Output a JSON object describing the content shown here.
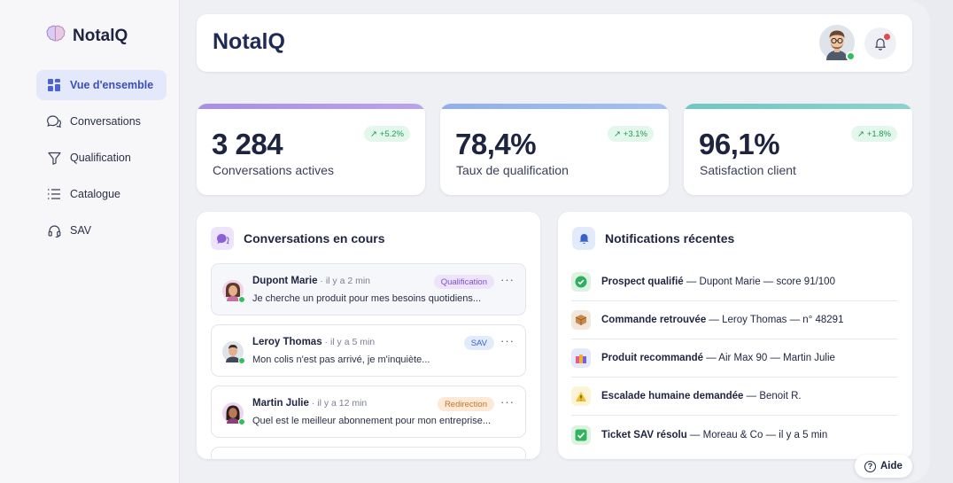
{
  "app": {
    "name": "NotalQ"
  },
  "sidebar": {
    "items": [
      {
        "label": "Vue d'ensemble",
        "icon": "grid-icon",
        "active": true
      },
      {
        "label": "Conversations",
        "icon": "chat-icon",
        "active": false
      },
      {
        "label": "Qualification",
        "icon": "filter-icon",
        "active": false
      },
      {
        "label": "Catalogue",
        "icon": "list-icon",
        "active": false
      },
      {
        "label": "SAV",
        "icon": "headset-icon",
        "active": false
      }
    ]
  },
  "header": {
    "title": "NotalQ"
  },
  "kpis": [
    {
      "value": "3 284",
      "label": "Conversations actives",
      "trend": "+5.2%",
      "color": "#a98de8"
    },
    {
      "value": "78,4%",
      "label": "Taux de qualification",
      "trend": "+3.1%",
      "color": "#8fb0ec"
    },
    {
      "value": "96,1%",
      "label": "Satisfaction client",
      "trend": "+1.8%",
      "color": "#6fc7c3"
    }
  ],
  "conversations": {
    "title": "Conversations en cours",
    "items": [
      {
        "name": "Dupont Marie",
        "time": " · il y a 2 min",
        "message": "Je cherche un produit pour mes besoins quotidiens...",
        "tag": "Qualification",
        "tag_bg": "#ede4fb",
        "tag_fg": "#7a4fcf"
      },
      {
        "name": "Leroy Thomas",
        "time": " · il y a 5 min",
        "message": "Mon colis n'est pas arrivé, je m'inquiète...",
        "tag": "SAV",
        "tag_bg": "#e2ebfb",
        "tag_fg": "#3a63c9"
      },
      {
        "name": "Martin Julie",
        "time": " · il y a 12 min",
        "message": "Quel est le meilleur abonnement pour mon entreprise...",
        "tag": "Redirection",
        "tag_bg": "#fde9d6",
        "tag_fg": "#c9722a"
      }
    ]
  },
  "notifications": {
    "title": "Notifications récentes",
    "items": [
      {
        "strong": "Prospect qualifié",
        "rest": " — Dupont Marie — score 91/100",
        "icon": "check-circle-icon",
        "bg": "#dcf3e3",
        "fg": "#2a9c57",
        "glyph": "✔"
      },
      {
        "strong": "Commande retrouvée",
        "rest": " — Leroy Thomas — n° 48291",
        "icon": "package-icon",
        "bg": "#f3e6da",
        "fg": "#b07440",
        "glyph": "📦"
      },
      {
        "strong": "Produit recommandé",
        "rest": " — Air Max 90 — Martin Julie",
        "icon": "shopping-bag-icon",
        "bg": "#e3e8fb",
        "fg": "#6a5acd",
        "glyph": "🛍"
      },
      {
        "strong": "Escalade humaine demandée",
        "rest": " — Benoit R.",
        "icon": "warning-icon",
        "bg": "#fdf3d6",
        "fg": "#d99a1e",
        "glyph": "⚠"
      },
      {
        "strong": "Ticket SAV résolu",
        "rest": " — Moreau & Co — il y a 5 min",
        "icon": "check-box-icon",
        "bg": "#dcf3e3",
        "fg": "#2a9c57",
        "glyph": "✅"
      }
    ]
  },
  "help": {
    "label": "Aide"
  }
}
